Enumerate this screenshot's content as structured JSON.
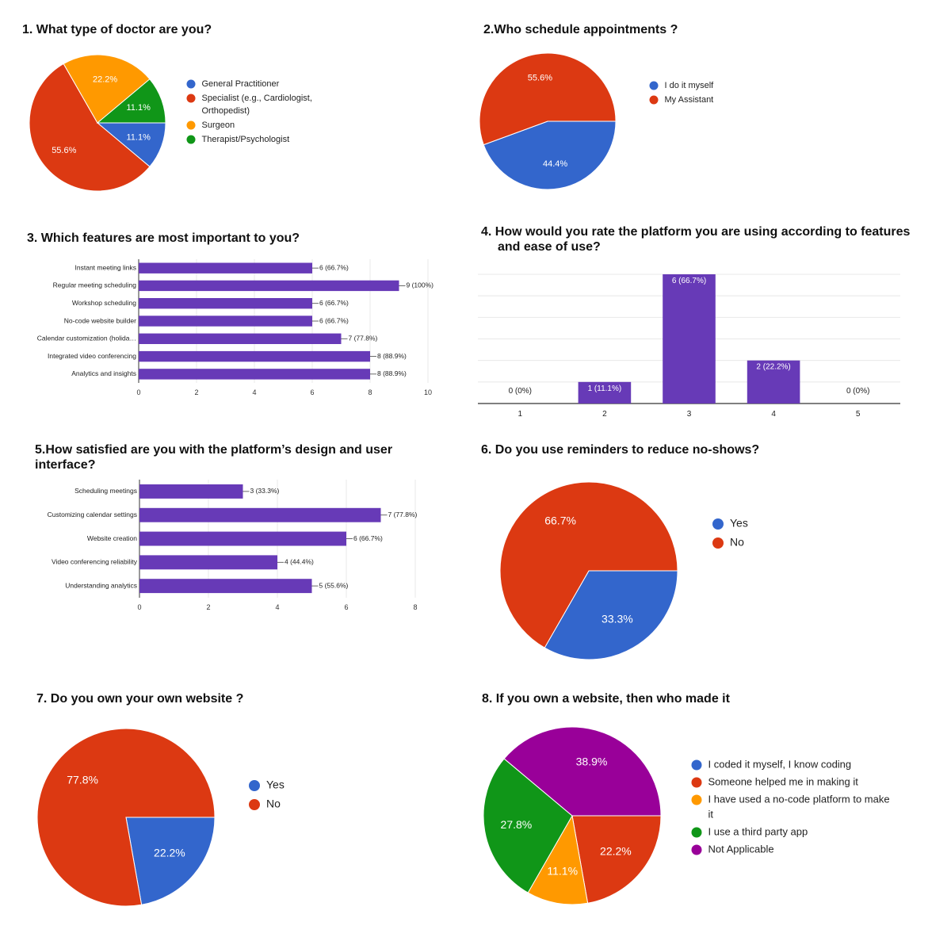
{
  "colors": {
    "blue": "#3366cc",
    "red": "#dc3912",
    "orange": "#ff9900",
    "green": "#109618",
    "purple": "#990099",
    "bar": "#673ab7",
    "grid": "#e8e8e8",
    "axis": "#333333"
  },
  "chart_data": [
    {
      "type": "pie",
      "title": "1. What type of doctor are you?",
      "slices": [
        {
          "label": "General Practitioner",
          "value": 11.1,
          "display": "11.1%"
        },
        {
          "label": "Specialist (e.g., Cardiologist, Orthopedist)",
          "value": 55.6,
          "display": "55.6%"
        },
        {
          "label": "Surgeon",
          "value": 22.2,
          "display": "22.2%"
        },
        {
          "label": "Therapist/Psychologist",
          "value": 11.1,
          "display": "11.1%"
        }
      ],
      "legend_lines": [
        [
          "General Practitioner"
        ],
        [
          "Specialist (e.g., Cardiologist,",
          "Orthopedist)"
        ],
        [
          "Surgeon"
        ],
        [
          "Therapist/Psychologist"
        ]
      ],
      "legend_position": "right"
    },
    {
      "type": "pie",
      "title": "2.Who schedule appointments ?",
      "slices": [
        {
          "label": "I do it myself",
          "value": 44.4,
          "display": "44.4%"
        },
        {
          "label": "My Assistant",
          "value": 55.6,
          "display": "55.6%"
        }
      ],
      "legend_lines": [
        [
          "I do it myself"
        ],
        [
          "My Assistant"
        ]
      ],
      "legend_position": "right"
    },
    {
      "type": "bar",
      "orientation": "horizontal",
      "title": "3. Which features are most important to you?",
      "categories": [
        "Instant meeting links",
        "Regular meeting scheduling",
        "Workshop scheduling",
        "No-code website builder",
        "Calendar customization (holida…",
        "Integrated video conferencing",
        "Analytics and insights"
      ],
      "values": [
        6,
        9,
        6,
        6,
        7,
        8,
        8
      ],
      "data_labels": [
        "6 (66.7%)",
        "9 (100%)",
        "6 (66.7%)",
        "6 (66.7%)",
        "7 (77.8%)",
        "8 (88.9%)",
        "8 (88.9%)"
      ],
      "xlim": [
        0,
        10
      ],
      "ticks": [
        "0",
        "2",
        "4",
        "6",
        "8",
        "10"
      ]
    },
    {
      "type": "bar",
      "orientation": "vertical",
      "title_lines": [
        "4.  How would you rate the platform you are using according to features",
        "and ease of use?"
      ],
      "categories": [
        "1",
        "2",
        "3",
        "4",
        "5"
      ],
      "values": [
        0,
        1,
        6,
        2,
        0
      ],
      "data_labels": [
        "0 (0%)",
        "1 (11.1%)",
        "6 (66.7%)",
        "2 (22.2%)",
        "0 (0%)"
      ],
      "ylim": [
        0,
        6
      ]
    },
    {
      "type": "bar",
      "orientation": "horizontal",
      "title_lines": [
        "5.How satisfied are you with the platform’s design and user",
        "interface?"
      ],
      "categories": [
        "Scheduling meetings",
        "Customizing calendar settings",
        "Website creation",
        "Video conferencing reliability",
        "Understanding analytics"
      ],
      "values": [
        3,
        7,
        6,
        4,
        5
      ],
      "data_labels": [
        "3 (33.3%)",
        "7 (77.8%)",
        "6 (66.7%)",
        "4 (44.4%)",
        "5 (55.6%)"
      ],
      "xlim": [
        0,
        8
      ],
      "ticks": [
        "0",
        "2",
        "4",
        "6",
        "8"
      ]
    },
    {
      "type": "pie",
      "title": "6.  Do you use reminders to reduce no-shows?",
      "slices": [
        {
          "label": "Yes",
          "value": 33.3,
          "display": "33.3%"
        },
        {
          "label": "No",
          "value": 66.7,
          "display": "66.7%"
        }
      ],
      "legend_lines": [
        [
          "Yes"
        ],
        [
          "No"
        ]
      ],
      "legend_position": "right"
    },
    {
      "type": "pie",
      "title": "7.  Do you own your own website ?",
      "slices": [
        {
          "label": "Yes",
          "value": 22.2,
          "display": "22.2%"
        },
        {
          "label": "No",
          "value": 77.8,
          "display": "77.8%"
        }
      ],
      "legend_lines": [
        [
          "Yes"
        ],
        [
          "No"
        ]
      ],
      "legend_position": "right"
    },
    {
      "type": "pie",
      "title": "8.  If you own a website, then who made it",
      "slices": [
        {
          "label": "I coded it myself, I know coding",
          "value": 0,
          "display": ""
        },
        {
          "label": "Someone helped me in making it",
          "value": 22.2,
          "display": "22.2%"
        },
        {
          "label": "I have used a no-code platform to make it",
          "value": 11.1,
          "display": "11.1%"
        },
        {
          "label": "I use a third party app",
          "value": 27.8,
          "display": "27.8%"
        },
        {
          "label": "Not Applicable",
          "value": 38.9,
          "display": "38.9%"
        }
      ],
      "legend_lines": [
        [
          "I coded it myself, I know coding"
        ],
        [
          "Someone helped me in making it"
        ],
        [
          "I have used a no-code platform to make",
          "it"
        ],
        [
          "I use a third party app"
        ],
        [
          "Not Applicable"
        ]
      ],
      "legend_position": "right"
    }
  ]
}
